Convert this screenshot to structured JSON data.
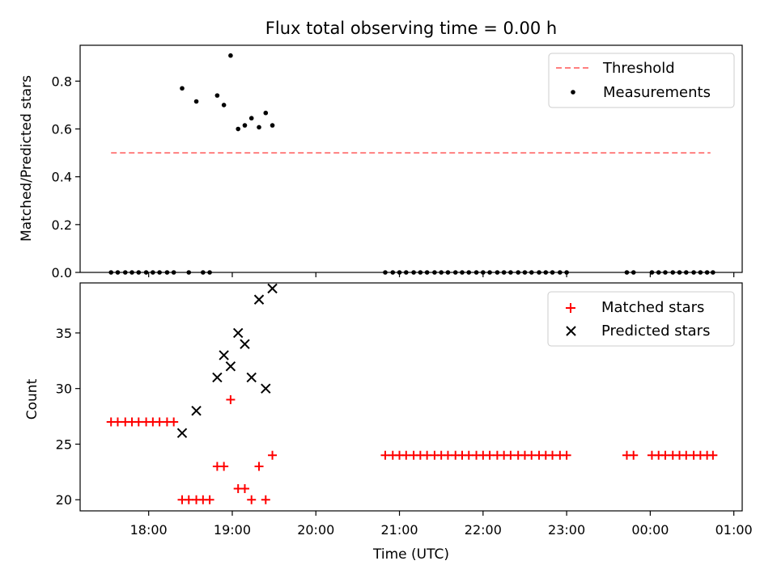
{
  "chart_data": {
    "title": "Flux total observing time = 0.00 h",
    "xlabel": "Time (UTC)",
    "x_ticks": [
      "18:00",
      "19:00",
      "20:00",
      "21:00",
      "22:00",
      "23:00",
      "00:00",
      "01:00"
    ],
    "x_range_hours": [
      17.18,
      25.1
    ],
    "panels": [
      {
        "type": "scatter",
        "ylabel": "Matched/Predicted stars",
        "ylim": [
          0,
          0.95
        ],
        "y_ticks": [
          "0.0",
          "0.2",
          "0.4",
          "0.6",
          "0.8"
        ],
        "y_tick_values": [
          0,
          0.2,
          0.4,
          0.6,
          0.8
        ],
        "legend_position": "top-right",
        "series": [
          {
            "name": "Threshold",
            "type": "line",
            "style": "dashed",
            "color": "#ff7f7f",
            "x": [
              17.55,
              24.72
            ],
            "y": [
              0.5,
              0.5
            ]
          },
          {
            "name": "Measurements",
            "type": "scatter",
            "marker": "dot",
            "color": "#000000",
            "x": [
              17.55,
              17.63,
              17.72,
              17.8,
              17.88,
              17.97,
              18.05,
              18.13,
              18.22,
              18.3,
              18.4,
              18.48,
              18.57,
              18.65,
              18.73,
              18.82,
              18.9,
              18.98,
              19.07,
              19.15,
              19.23,
              19.32,
              19.4,
              19.48,
              20.83,
              20.92,
              21.0,
              21.08,
              21.17,
              21.25,
              21.33,
              21.42,
              21.5,
              21.58,
              21.67,
              21.75,
              21.83,
              21.92,
              22.0,
              22.08,
              22.17,
              22.25,
              22.33,
              22.42,
              22.5,
              22.58,
              22.67,
              22.75,
              22.83,
              22.92,
              23.0,
              23.72,
              23.8,
              24.02,
              24.1,
              24.18,
              24.27,
              24.35,
              24.43,
              24.52,
              24.6,
              24.68,
              24.75
            ],
            "y": [
              0,
              0,
              0,
              0,
              0,
              0,
              0,
              0,
              0,
              0,
              0.77,
              0,
              0.715,
              0,
              0,
              0.74,
              0.7,
              0.907,
              0.6,
              0.615,
              0.645,
              0.607,
              0.667,
              0.615,
              0,
              0,
              0,
              0,
              0,
              0,
              0,
              0,
              0,
              0,
              0,
              0,
              0,
              0,
              0,
              0,
              0,
              0,
              0,
              0,
              0,
              0,
              0,
              0,
              0,
              0,
              0,
              0,
              0,
              0,
              0,
              0,
              0,
              0,
              0,
              0,
              0,
              0,
              0
            ]
          }
        ]
      },
      {
        "type": "scatter",
        "ylabel": "Count",
        "ylim": [
          19,
          39.5
        ],
        "y_ticks": [
          "20",
          "25",
          "30",
          "35"
        ],
        "y_tick_values": [
          20,
          25,
          30,
          35
        ],
        "legend_position": "top-right",
        "series": [
          {
            "name": "Matched stars",
            "type": "scatter",
            "marker": "plus",
            "color": "#ff0000",
            "x": [
              17.55,
              17.63,
              17.72,
              17.8,
              17.88,
              17.97,
              18.05,
              18.13,
              18.22,
              18.3,
              18.4,
              18.48,
              18.57,
              18.65,
              18.73,
              18.82,
              18.9,
              18.98,
              19.07,
              19.15,
              19.23,
              19.32,
              19.4,
              19.48,
              20.83,
              20.92,
              21.0,
              21.08,
              21.17,
              21.25,
              21.33,
              21.42,
              21.5,
              21.58,
              21.67,
              21.75,
              21.83,
              21.92,
              22.0,
              22.08,
              22.17,
              22.25,
              22.33,
              22.42,
              22.5,
              22.58,
              22.67,
              22.75,
              22.83,
              22.92,
              23.0,
              23.72,
              23.8,
              24.02,
              24.1,
              24.18,
              24.27,
              24.35,
              24.43,
              24.52,
              24.6,
              24.68,
              24.75
            ],
            "y": [
              27,
              27,
              27,
              27,
              27,
              27,
              27,
              27,
              27,
              27,
              20,
              20,
              20,
              20,
              20,
              23,
              23,
              29,
              21,
              21,
              20,
              23,
              20,
              24,
              24,
              24,
              24,
              24,
              24,
              24,
              24,
              24,
              24,
              24,
              24,
              24,
              24,
              24,
              24,
              24,
              24,
              24,
              24,
              24,
              24,
              24,
              24,
              24,
              24,
              24,
              24,
              24,
              24,
              24,
              24,
              24,
              24,
              24,
              24,
              24,
              24,
              24,
              24
            ]
          },
          {
            "name": "Predicted stars",
            "type": "scatter",
            "marker": "x",
            "color": "#000000",
            "x": [
              18.4,
              18.57,
              18.82,
              18.9,
              18.98,
              19.07,
              19.15,
              19.23,
              19.32,
              19.4,
              19.48
            ],
            "y": [
              26,
              28,
              31,
              33,
              32,
              35,
              34,
              31,
              38,
              30,
              39
            ]
          }
        ]
      }
    ]
  }
}
